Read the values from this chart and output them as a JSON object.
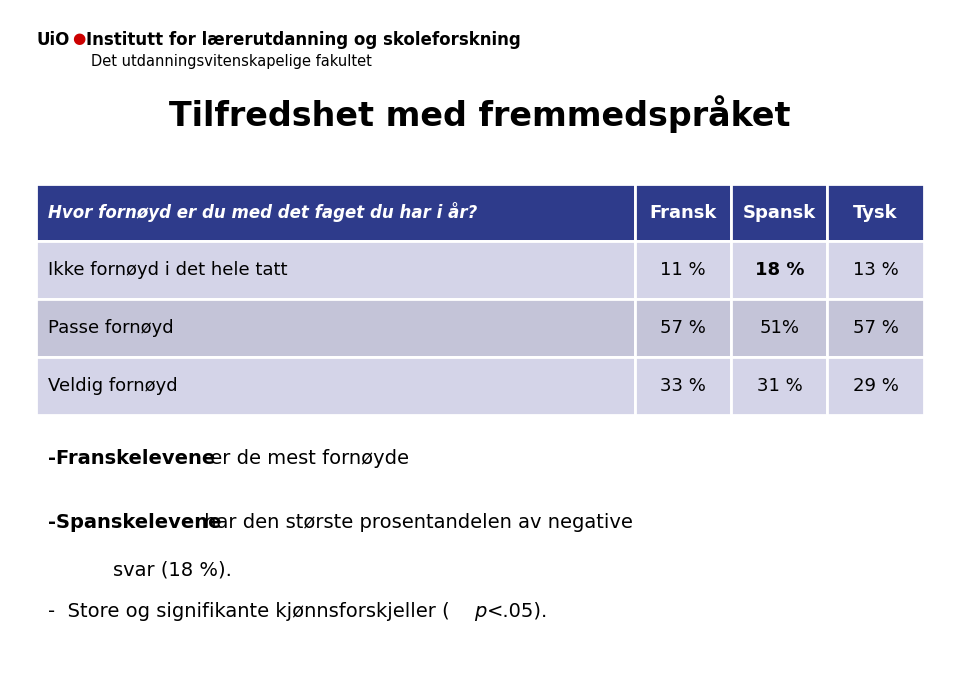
{
  "title": "Tilfredshet med fremmedspråket",
  "header_question": "Hvor fornøyd er du med det faget du har i år?",
  "header_cols": [
    "Fransk",
    "Spansk",
    "Tysk"
  ],
  "rows": [
    {
      "label": "Ikke fornøyd i det hele tatt",
      "values": [
        "11 %",
        "18 %",
        "13 %"
      ],
      "bold_col": 1
    },
    {
      "label": "Passe fornøyd",
      "values": [
        "57 %",
        "51%",
        "57 %"
      ],
      "bold_col": -1
    },
    {
      "label": "Veldig fornøyd",
      "values": [
        "33 %",
        "31 %",
        "29 %"
      ],
      "bold_col": -1
    }
  ],
  "header_bg": "#2E3B8B",
  "row_bg_odd": "#D4D4E8",
  "row_bg_even": "#C4C4D8",
  "header_text_color": "#FFFFFF",
  "row_text_color": "#000000",
  "logo_text1": "UiO",
  "logo_red": "·",
  "logo_text2": "Institutt for lærerutdanning og skoleforskning",
  "logo_text3": "Det utdanningsvitenskapelige fakultet",
  "bg_color": "#FFFFFF"
}
